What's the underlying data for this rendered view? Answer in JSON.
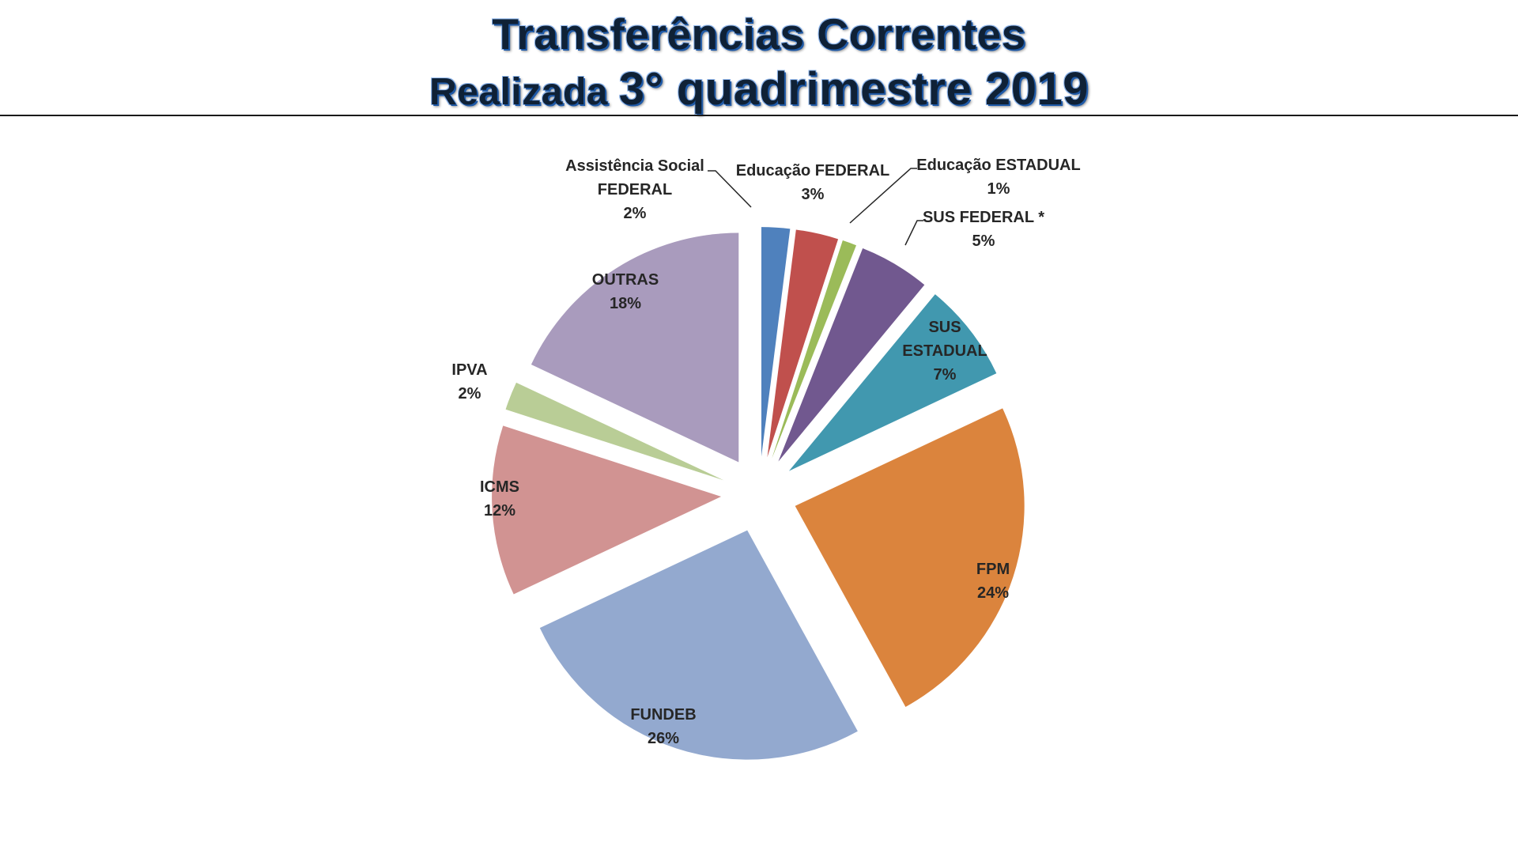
{
  "title": {
    "line1": "Transferências Correntes",
    "line2_prefix": "Realizada ",
    "line2_main": "3° quadrimestre 2019"
  },
  "chart_data": {
    "type": "pie",
    "exploded": true,
    "slices": [
      {
        "name": "Assistência Social FEDERAL",
        "label_lines": [
          "Assistência Social",
          "FEDERAL"
        ],
        "value": 2,
        "value_label": "2%",
        "color": "#4f81bd"
      },
      {
        "name": "Educação FEDERAL",
        "label_lines": [
          "Educação FEDERAL"
        ],
        "value": 3,
        "value_label": "3%",
        "color": "#c0504d"
      },
      {
        "name": "Educação ESTADUAL",
        "label_lines": [
          "Educação ESTADUAL"
        ],
        "value": 1,
        "value_label": "1%",
        "color": "#9bbb59"
      },
      {
        "name": "SUS FEDERAL *",
        "label_lines": [
          "SUS FEDERAL *"
        ],
        "value": 5,
        "value_label": "5%",
        "color": "#71588f"
      },
      {
        "name": "SUS ESTADUAL",
        "label_lines": [
          "SUS",
          "ESTADUAL"
        ],
        "value": 7,
        "value_label": "7%",
        "color": "#4198af"
      },
      {
        "name": "FPM",
        "label_lines": [
          "FPM"
        ],
        "value": 24,
        "value_label": "24%",
        "color": "#db843d"
      },
      {
        "name": "FUNDEB",
        "label_lines": [
          "FUNDEB"
        ],
        "value": 26,
        "value_label": "26%",
        "color": "#93a9cf"
      },
      {
        "name": "ICMS",
        "label_lines": [
          "ICMS"
        ],
        "value": 12,
        "value_label": "12%",
        "color": "#d19392"
      },
      {
        "name": "IPVA",
        "label_lines": [
          "IPVA"
        ],
        "value": 2,
        "value_label": "2%",
        "color": "#b9cd96"
      },
      {
        "name": "OUTRAS",
        "label_lines": [
          "OUTRAS"
        ],
        "value": 18,
        "value_label": "18%",
        "color": "#a99bbd"
      }
    ]
  }
}
